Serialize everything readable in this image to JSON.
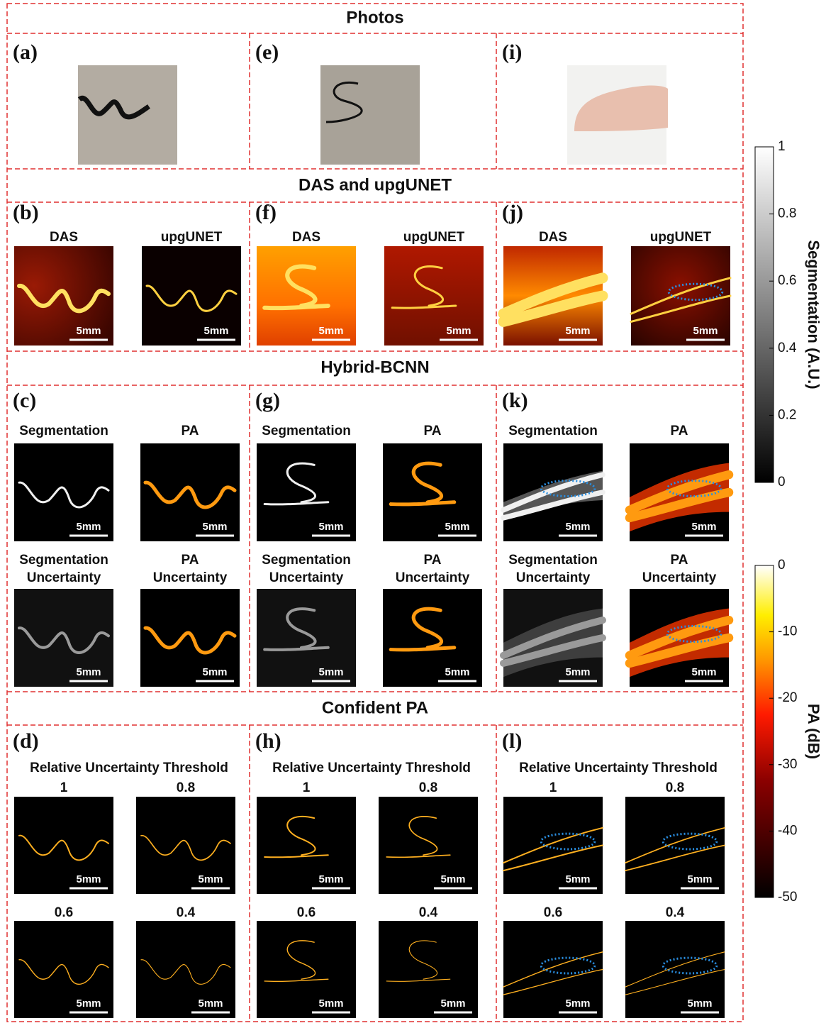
{
  "photos": {
    "title": "Photos",
    "labels": [
      "(a)",
      "(e)",
      "(i)"
    ]
  },
  "das": {
    "title": "DAS and upgUNET",
    "labels": [
      "(b)",
      "(f)",
      "(j)"
    ],
    "image_titles": [
      "DAS",
      "upgUNET"
    ]
  },
  "hybrid": {
    "title": "Hybrid-BCNN",
    "labels": [
      "(c)",
      "(g)",
      "(k)"
    ],
    "image_titles": [
      [
        "Segmentation"
      ],
      [
        "PA"
      ],
      [
        "Segmentation",
        "Uncertainty"
      ],
      [
        "PA",
        "Uncertainty"
      ]
    ]
  },
  "confident": {
    "title": "Confident PA",
    "labels": [
      "(d)",
      "(h)",
      "(l)"
    ],
    "threshold_label": "Relative Uncertainty Threshold",
    "thresholds": [
      1,
      0.8,
      0.6,
      0.4
    ]
  },
  "scale_bar": "5mm",
  "segmentation_colorbar": {
    "label": "Segmentation (A.U.)",
    "range": [
      0,
      1
    ],
    "ticks": [
      0,
      0.2,
      0.4,
      0.6,
      0.8,
      1
    ]
  },
  "pa_colorbar": {
    "label": "PA (dB)",
    "range": [
      -50,
      0
    ],
    "ticks": [
      0,
      -10,
      -20,
      -30,
      -40,
      -50
    ]
  }
}
